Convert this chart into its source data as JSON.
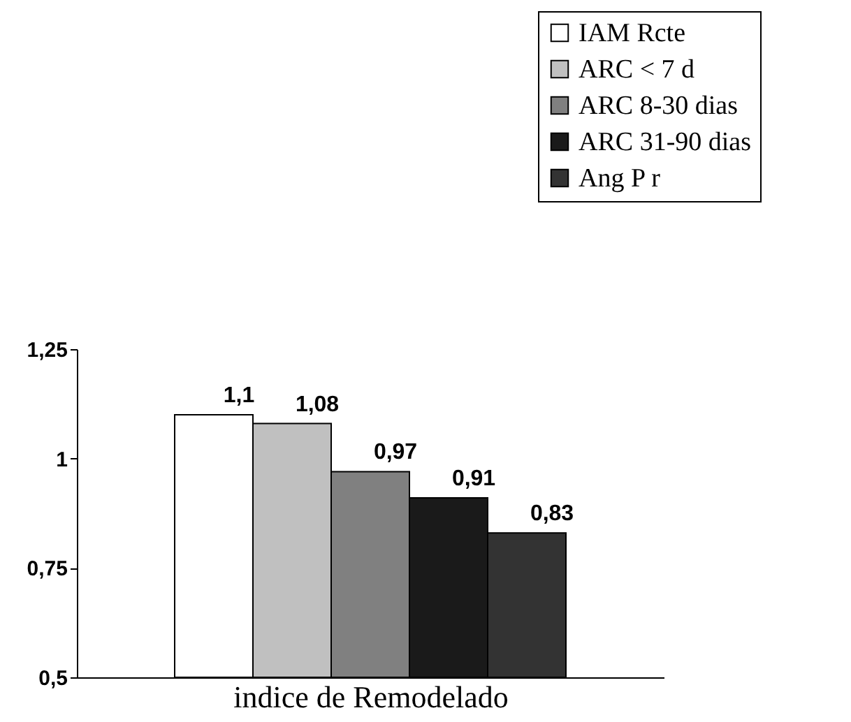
{
  "chart_data": {
    "type": "bar",
    "xlabel": "indice de Remodelado",
    "categories": [
      null
    ],
    "series": [
      {
        "name": "IAM Rcte",
        "color": "#ffffff",
        "values": [
          1.1
        ],
        "value_labels": [
          "1,1"
        ]
      },
      {
        "name": "ARC < 7 d",
        "color": "#c0c0c0",
        "values": [
          1.08
        ],
        "value_labels": [
          "1,08"
        ]
      },
      {
        "name": "ARC 8-30 dias",
        "color": "#808080",
        "values": [
          0.97
        ],
        "value_labels": [
          "0,97"
        ]
      },
      {
        "name": "ARC 31-90 dias",
        "color": "#1a1a1a",
        "values": [
          0.91
        ],
        "value_labels": [
          "0,91"
        ]
      },
      {
        "name": "Ang P r",
        "color": "#333333",
        "values": [
          0.83
        ],
        "value_labels": [
          "0,83"
        ]
      }
    ],
    "ylim": [
      0.5,
      1.25
    ],
    "yticks": [
      {
        "value": 0.5,
        "label": "0,5"
      },
      {
        "value": 0.75,
        "label": "0,75"
      },
      1,
      {
        "value": 1.25,
        "label": "1,25"
      }
    ],
    "grid": false,
    "legend": "top right"
  }
}
